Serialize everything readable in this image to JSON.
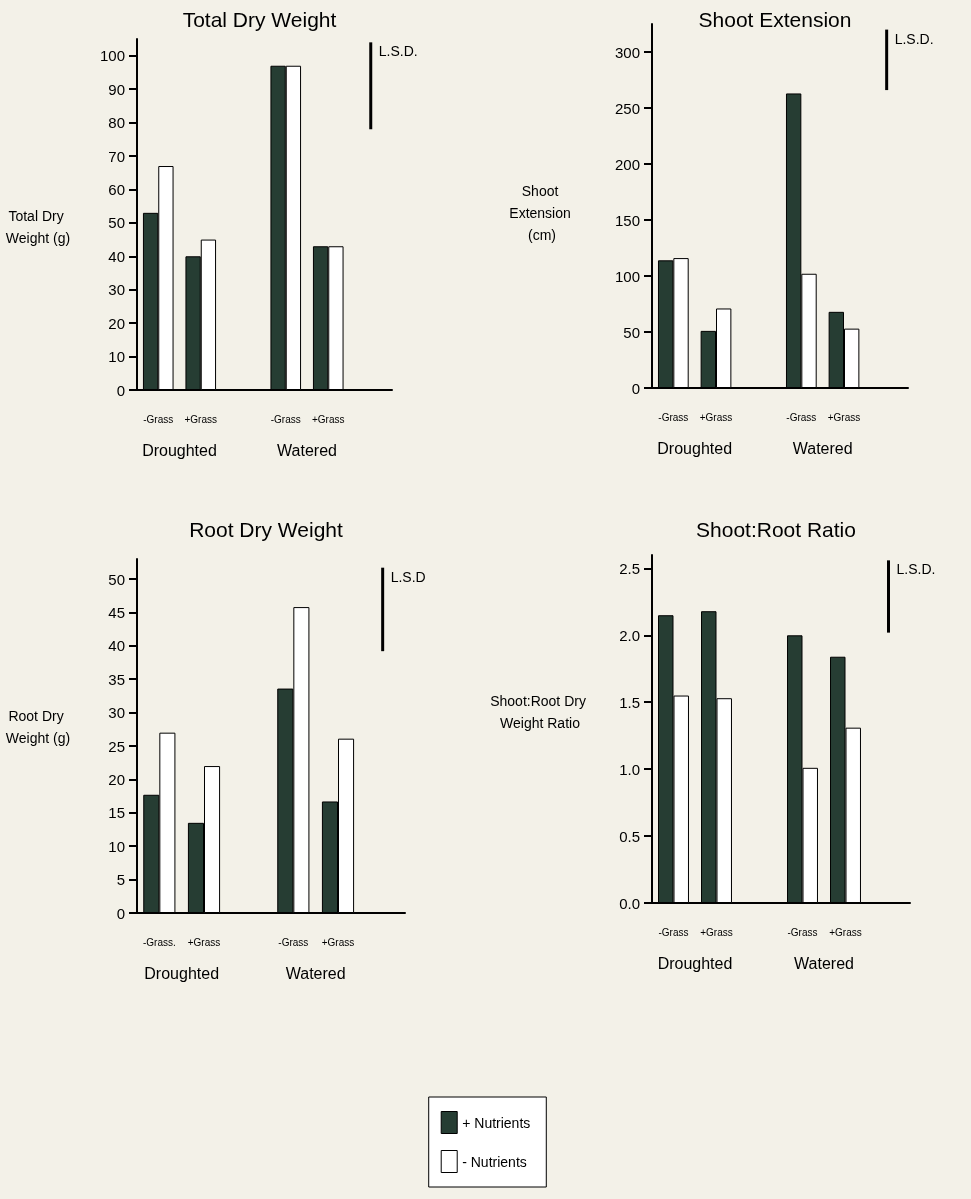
{
  "chart_data": [
    {
      "type": "bar",
      "title": "Total Dry Weight",
      "ylabel": "Total Dry Weight (g)",
      "categories": [
        "-Grass",
        "+Grass",
        null,
        "-Grass",
        "+Grass",
        null
      ],
      "series": [
        {
          "color": "#263d33",
          "values": [
            53,
            40,
            null,
            97,
            43,
            null
          ]
        },
        {
          "color": "#ffffff",
          "values": [
            67,
            45,
            null,
            97,
            43,
            null
          ]
        },
        {
          "color": "#000000",
          "values": [
            null,
            null,
            null,
            null,
            null,
            26
          ],
          "base": [
            null,
            null,
            null,
            null,
            null,
            78
          ]
        }
      ],
      "ylim": [
        0,
        105
      ],
      "yticks": [
        0,
        10,
        20,
        30,
        40,
        50,
        60,
        70,
        80,
        90,
        100
      ],
      "annotations": [
        "Droughted",
        "Watered",
        "L.S.D."
      ]
    },
    {
      "type": "bar",
      "title": "Shoot Extension",
      "ylabel": "Shoot Extension (cm)",
      "categories": [
        "-Grass",
        "+Grass",
        null,
        "-Grass",
        "+Grass",
        null
      ],
      "series": [
        {
          "color": "#263d33",
          "values": [
            114,
            51,
            null,
            263,
            68,
            null
          ]
        },
        {
          "color": "#ffffff",
          "values": [
            116,
            71,
            null,
            102,
            53,
            null
          ]
        },
        {
          "color": "#000000",
          "values": [
            null,
            null,
            null,
            null,
            null,
            54
          ],
          "base": [
            null,
            null,
            null,
            null,
            null,
            266
          ]
        }
      ],
      "ylim": [
        0,
        325
      ],
      "yticks": [
        0,
        50,
        100,
        150,
        200,
        250,
        300
      ],
      "annotations": [
        "Droughted",
        "Watered",
        "L.S.D."
      ]
    },
    {
      "type": "bar",
      "title": "Root Dry Weight",
      "ylabel": "Root Dry Weight (g)",
      "categories": [
        "-Grass.",
        "+Grass",
        null,
        "-Grass",
        "+Grass",
        null
      ],
      "series": [
        {
          "name": "+ Nutrients",
          "color": "#263d33",
          "values": [
            17.7,
            13.5,
            null,
            33.6,
            16.7,
            null
          ]
        },
        {
          "name": "- Nutrients",
          "color": "#ffffff",
          "values": [
            27,
            22,
            null,
            45.8,
            26.1,
            null
          ]
        },
        {
          "color": "#000000",
          "values": [
            null,
            null,
            null,
            null,
            null,
            12.5
          ],
          "base": [
            null,
            null,
            null,
            null,
            null,
            39.2
          ]
        }
      ],
      "ylim": [
        0,
        53
      ],
      "yticks": [
        0,
        5,
        10,
        15,
        20,
        25,
        30,
        35,
        40,
        45,
        50
      ],
      "legend": "bottom",
      "annotations": [
        "Droughted",
        "Watered",
        "L.S.D"
      ]
    },
    {
      "type": "bar",
      "title": "Shoot:Root Ratio",
      "ylabel": "Shoot:Root Dry Weight Ratio",
      "categories": [
        "-Grass",
        "+Grass",
        null,
        "-Grass",
        "+Grass",
        null
      ],
      "series": [
        {
          "color": "#263d33",
          "values": [
            2.15,
            2.18,
            null,
            2.0,
            1.84,
            null
          ]
        },
        {
          "color": "#ffffff",
          "values": [
            1.55,
            1.53,
            null,
            1.01,
            1.31,
            null
          ]
        },
        {
          "color": "#000000",
          "values": [
            null,
            null,
            null,
            null,
            null,
            0.54
          ],
          "base": [
            null,
            null,
            null,
            null,
            null,
            2.02
          ]
        }
      ],
      "ylim": [
        0,
        2.6
      ],
      "yticks": [
        {
          "value": 0,
          "label": "0.0"
        },
        0.5,
        {
          "value": 1,
          "label": "1.0"
        },
        1.5,
        {
          "value": 2,
          "label": "2.0"
        },
        2.5
      ],
      "annotations": [
        "Droughted",
        "Watered",
        "L.S.D."
      ]
    }
  ]
}
